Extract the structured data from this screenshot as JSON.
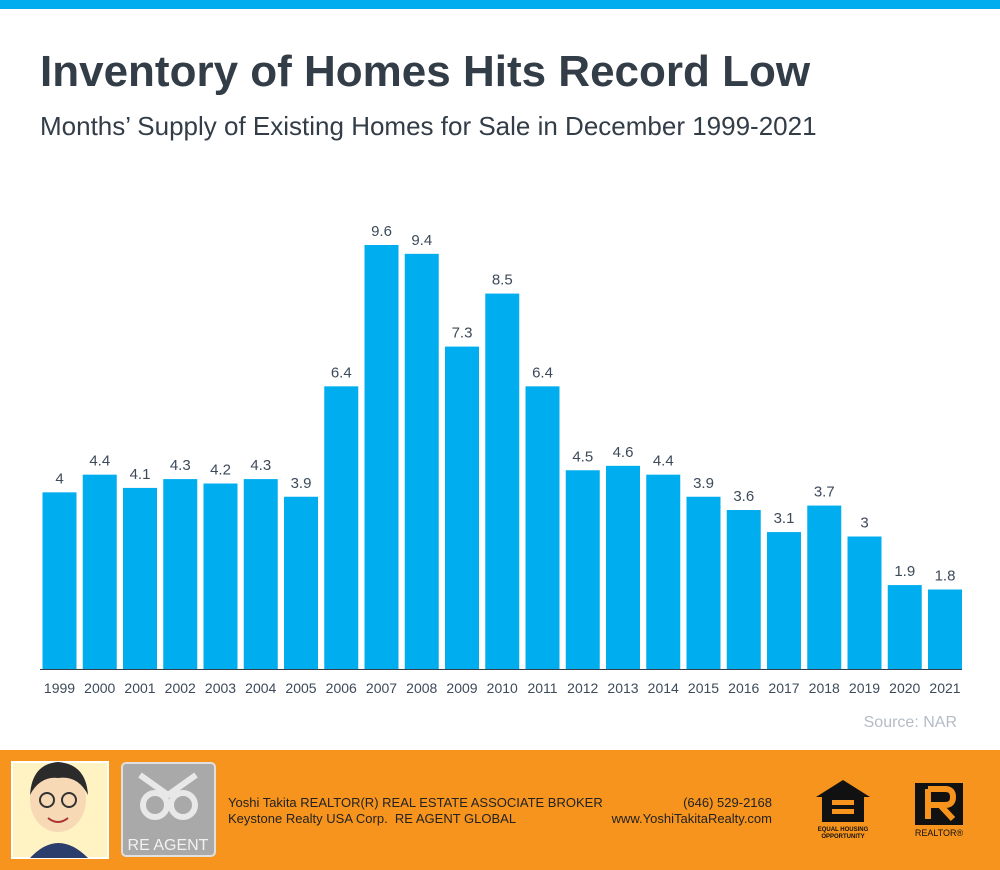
{
  "chart_data": {
    "type": "bar",
    "title": "Inventory of Homes Hits Record Low",
    "subtitle": "Months’ Supply of Existing Homes for Sale in December 1999-2021",
    "categories": [
      "1999",
      "2000",
      "2001",
      "2002",
      "2003",
      "2004",
      "2005",
      "2006",
      "2007",
      "2008",
      "2009",
      "2010",
      "2011",
      "2012",
      "2013",
      "2014",
      "2015",
      "2016",
      "2017",
      "2018",
      "2019",
      "2020",
      "2021"
    ],
    "values": [
      4,
      4.4,
      4.1,
      4.3,
      4.2,
      4.3,
      3.9,
      6.4,
      9.6,
      9.4,
      7.3,
      8.5,
      6.4,
      4.5,
      4.6,
      4.4,
      3.9,
      3.6,
      3.1,
      3.7,
      3,
      1.9,
      1.8
    ],
    "color": "#00aeef",
    "source": "Source: NAR"
  },
  "footer": {
    "agent": "Yoshi Takita REALTOR(R) REAL ESTATE ASSOCIATE BROKER",
    "company": "Keystone Realty USA Corp.  RE AGENT GLOBAL",
    "phone": "(646) 529-2168",
    "website": "www.YoshiTakitaRealty.com",
    "logo_text": "RE AGENT",
    "equal_housing": [
      "EQUAL HOUSING",
      "OPPORTUNITY"
    ],
    "realtor": "REALTOR®"
  }
}
